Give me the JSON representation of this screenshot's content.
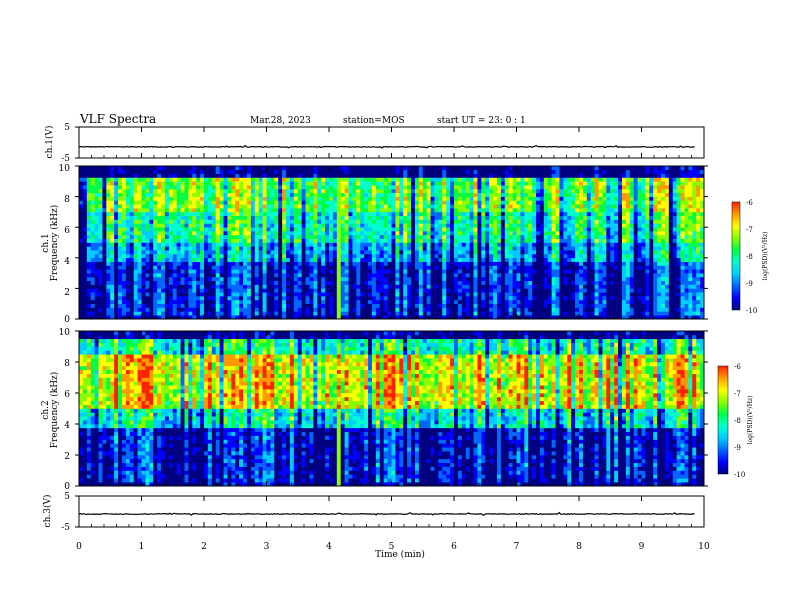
{
  "header": {
    "title": "VLF Spectra",
    "date": "Mar.28, 2023",
    "station": "station=MOS",
    "start": "start UT =  23: 0  : 1"
  },
  "chart_data": [
    {
      "type": "line",
      "panel": "ch1-voltage",
      "ylabel": "ch.1(V)",
      "ylim": [
        -5,
        5
      ],
      "yticks": [
        "5",
        "-5"
      ],
      "xlim": [
        0,
        9.85
      ],
      "series": [
        {
          "values": [
            -1.4,
            -1.4,
            -1.4,
            -1.4,
            -1.4,
            -1.4,
            -1.4,
            -1.4,
            -1.4,
            -1.4,
            -1.4
          ]
        }
      ]
    },
    {
      "type": "heatmap",
      "panel": "ch1-spectrogram",
      "ylabel": "ch.1",
      "ylabel2": "Frequency (kHz)",
      "ylim": [
        0,
        10
      ],
      "yticks": [
        "0",
        "2",
        "4",
        "6",
        "8",
        "10"
      ],
      "xlim": [
        0,
        9.85
      ],
      "colorbar": {
        "label": "log(PSD)(V²/Hz)",
        "ticks": [
          "-6",
          "-7",
          "-8",
          "-9",
          "-10"
        ],
        "range": [
          -10,
          -6
        ]
      },
      "band_profile_kHz": [
        {
          "f_min": 0.0,
          "f_max": 0.3,
          "level": -9.8
        },
        {
          "f_min": 0.3,
          "f_max": 3.8,
          "level": -9.3
        },
        {
          "f_min": 3.8,
          "f_max": 5.0,
          "level": -8.6
        },
        {
          "f_min": 5.0,
          "f_max": 7.0,
          "level": -8.0
        },
        {
          "f_min": 7.0,
          "f_max": 9.2,
          "level": -7.5
        },
        {
          "f_min": 9.2,
          "f_max": 10.0,
          "level": -9.9
        }
      ],
      "impulse_time_min": 4.1
    },
    {
      "type": "heatmap",
      "panel": "ch2-spectrogram",
      "ylabel": "ch.2",
      "ylabel2": "Frequency (kHz)",
      "ylim": [
        0,
        10
      ],
      "yticks": [
        "0",
        "2",
        "4",
        "6",
        "8",
        "10"
      ],
      "xlim": [
        0,
        9.85
      ],
      "colorbar": {
        "label": "log(PSD)(V²/Hz)",
        "ticks": [
          "-6",
          "-7",
          "-8",
          "-9",
          "-10"
        ],
        "range": [
          -10,
          -6
        ]
      },
      "band_profile_kHz": [
        {
          "f_min": 0.0,
          "f_max": 0.3,
          "level": -9.8
        },
        {
          "f_min": 0.3,
          "f_max": 3.8,
          "level": -9.4
        },
        {
          "f_min": 3.8,
          "f_max": 5.0,
          "level": -8.2
        },
        {
          "f_min": 5.0,
          "f_max": 8.5,
          "level": -6.9
        },
        {
          "f_min": 8.5,
          "f_max": 9.6,
          "level": -8.0
        },
        {
          "f_min": 9.6,
          "f_max": 10.0,
          "level": -9.9
        }
      ],
      "impulse_time_min": 4.1
    },
    {
      "type": "line",
      "panel": "ch3-voltage",
      "ylabel": "ch.3(V)",
      "ylim": [
        -5,
        5
      ],
      "yticks": [
        "5",
        "-5"
      ],
      "xlim": [
        0,
        9.85
      ],
      "series": [
        {
          "values": [
            -0.8,
            -0.8,
            -0.8,
            -0.8,
            -0.8,
            -0.8,
            -0.8,
            -0.8,
            -0.8,
            -0.8,
            -0.8
          ]
        }
      ]
    }
  ],
  "xaxis": {
    "label": "Time (min)",
    "ticks": [
      "0",
      "1",
      "2",
      "3",
      "4",
      "5",
      "6",
      "7",
      "8",
      "9",
      "10"
    ],
    "range": [
      0,
      10
    ]
  },
  "colormap": [
    "#000080",
    "#0000ff",
    "#0066ff",
    "#00ccff",
    "#00ffcc",
    "#00ff44",
    "#88ff00",
    "#ffff00",
    "#ff9900",
    "#ff2200",
    "#ffffff"
  ]
}
